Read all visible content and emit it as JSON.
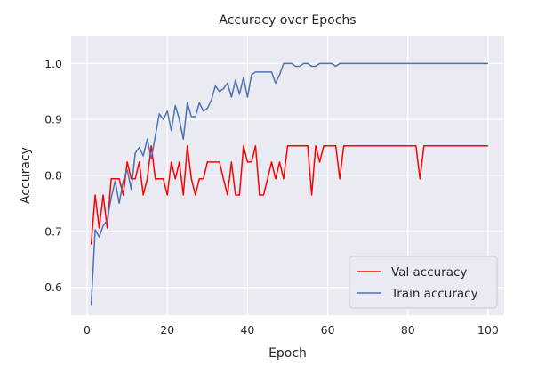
{
  "chart_data": {
    "type": "line",
    "title": "Accuracy over Epochs",
    "xlabel": "Epoch",
    "ylabel": "Accuracy",
    "xlim": [
      -4,
      104
    ],
    "ylim": [
      0.55,
      1.05
    ],
    "xticks": [
      0,
      20,
      40,
      60,
      80,
      100
    ],
    "yticks": [
      0.6,
      0.7,
      0.8,
      0.9,
      1.0
    ],
    "grid": true,
    "legend_position": "lower-right",
    "series": [
      {
        "name": "Val accuracy",
        "color": "#ff0000",
        "x": [
          1,
          2,
          3,
          4,
          5,
          6,
          7,
          8,
          9,
          10,
          11,
          12,
          13,
          14,
          15,
          16,
          17,
          18,
          19,
          20,
          21,
          22,
          23,
          24,
          25,
          26,
          27,
          28,
          29,
          30,
          31,
          32,
          33,
          34,
          35,
          36,
          37,
          38,
          39,
          40,
          41,
          42,
          43,
          44,
          45,
          46,
          47,
          48,
          49,
          50,
          51,
          52,
          53,
          54,
          55,
          56,
          57,
          58,
          59,
          60,
          61,
          62,
          63,
          64,
          65,
          66,
          67,
          68,
          69,
          70,
          71,
          72,
          73,
          74,
          75,
          76,
          77,
          78,
          79,
          80,
          81,
          82,
          83,
          84,
          85,
          86,
          87,
          88,
          89,
          90,
          91,
          92,
          93,
          94,
          95,
          96,
          97,
          98,
          99,
          100
        ],
        "values": [
          0.676,
          0.765,
          0.706,
          0.765,
          0.706,
          0.794,
          0.794,
          0.794,
          0.765,
          0.824,
          0.794,
          0.794,
          0.824,
          0.765,
          0.794,
          0.853,
          0.794,
          0.794,
          0.794,
          0.765,
          0.824,
          0.794,
          0.824,
          0.765,
          0.853,
          0.794,
          0.765,
          0.794,
          0.794,
          0.824,
          0.824,
          0.824,
          0.824,
          0.794,
          0.765,
          0.824,
          0.765,
          0.765,
          0.853,
          0.824,
          0.824,
          0.853,
          0.765,
          0.765,
          0.794,
          0.824,
          0.794,
          0.824,
          0.794,
          0.853,
          0.853,
          0.853,
          0.853,
          0.853,
          0.853,
          0.765,
          0.853,
          0.824,
          0.853,
          0.853,
          0.853,
          0.853,
          0.794,
          0.853,
          0.853,
          0.853,
          0.853,
          0.853,
          0.853,
          0.853,
          0.853,
          0.853,
          0.853,
          0.853,
          0.853,
          0.853,
          0.853,
          0.853,
          0.853,
          0.853,
          0.853,
          0.853,
          0.794,
          0.853,
          0.853,
          0.853,
          0.853,
          0.853,
          0.853,
          0.853,
          0.853,
          0.853,
          0.853,
          0.853,
          0.853,
          0.853,
          0.853,
          0.853,
          0.853,
          0.853
        ]
      },
      {
        "name": "Train accuracy",
        "color": "#4c72b0",
        "x": [
          1,
          2,
          3,
          4,
          5,
          6,
          7,
          8,
          9,
          10,
          11,
          12,
          13,
          14,
          15,
          16,
          17,
          18,
          19,
          20,
          21,
          22,
          23,
          24,
          25,
          26,
          27,
          28,
          29,
          30,
          31,
          32,
          33,
          34,
          35,
          36,
          37,
          38,
          39,
          40,
          41,
          42,
          43,
          44,
          45,
          46,
          47,
          48,
          49,
          50,
          51,
          52,
          53,
          54,
          55,
          56,
          57,
          58,
          59,
          60,
          61,
          62,
          63,
          64,
          65,
          66,
          67,
          68,
          69,
          70,
          71,
          72,
          73,
          74,
          75,
          76,
          77,
          78,
          79,
          80,
          81,
          82,
          83,
          84,
          85,
          86,
          87,
          88,
          89,
          90,
          91,
          92,
          93,
          94,
          95,
          96,
          97,
          98,
          99,
          100
        ],
        "values": [
          0.567,
          0.703,
          0.69,
          0.71,
          0.72,
          0.76,
          0.79,
          0.75,
          0.79,
          0.81,
          0.775,
          0.84,
          0.85,
          0.835,
          0.865,
          0.83,
          0.87,
          0.91,
          0.9,
          0.915,
          0.88,
          0.925,
          0.9,
          0.865,
          0.93,
          0.905,
          0.905,
          0.93,
          0.915,
          0.92,
          0.935,
          0.96,
          0.95,
          0.955,
          0.965,
          0.94,
          0.97,
          0.945,
          0.975,
          0.94,
          0.98,
          0.985,
          0.985,
          0.985,
          0.985,
          0.985,
          0.965,
          0.98,
          1.0,
          1.0,
          1.0,
          0.995,
          0.995,
          1.0,
          1.0,
          0.995,
          0.995,
          1.0,
          1.0,
          1.0,
          1.0,
          0.995,
          1.0,
          1.0,
          1.0,
          1.0,
          1.0,
          1.0,
          1.0,
          1.0,
          1.0,
          1.0,
          1.0,
          1.0,
          1.0,
          1.0,
          1.0,
          1.0,
          1.0,
          1.0,
          1.0,
          1.0,
          1.0,
          1.0,
          1.0,
          1.0,
          1.0,
          1.0,
          1.0,
          1.0,
          1.0,
          1.0,
          1.0,
          1.0,
          1.0,
          1.0,
          1.0,
          1.0,
          1.0,
          1.0
        ]
      }
    ],
    "colors": {
      "plot_background": "#eaeaf2",
      "grid": "#ffffff",
      "text": "#262626"
    }
  }
}
